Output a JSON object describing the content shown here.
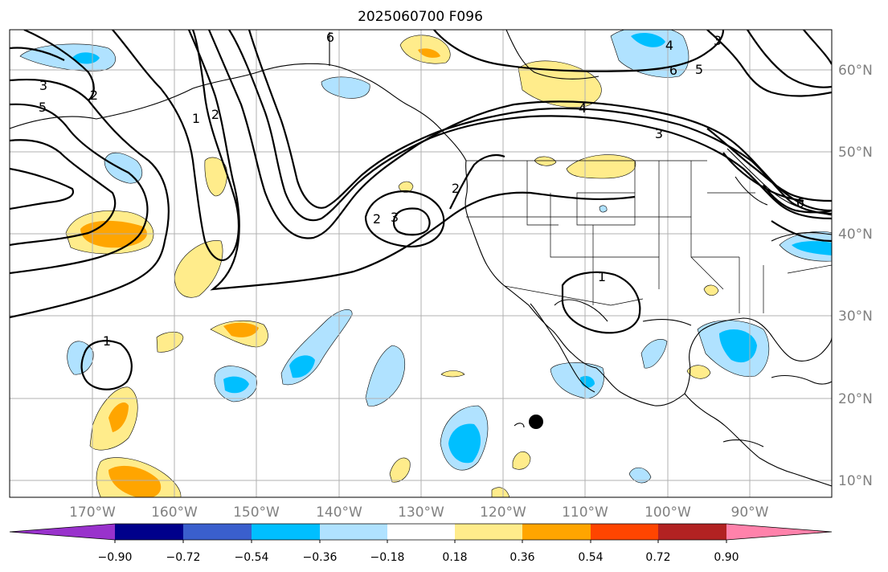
{
  "title": "2025060700 F096",
  "map": {
    "lon_labels": [
      "170°W",
      "160°W",
      "150°W",
      "140°W",
      "130°W",
      "120°W",
      "110°W",
      "100°W",
      "90°W"
    ],
    "lat_labels": [
      "60°N",
      "50°N",
      "40°N",
      "30°N",
      "20°N",
      "10°N"
    ],
    "extent": {
      "lon": [
        -180,
        -80
      ],
      "lat": [
        8,
        65
      ]
    }
  },
  "colorbar": {
    "ticks": [
      "−0.90",
      "−0.72",
      "−0.54",
      "−0.36",
      "−0.18",
      "0.18",
      "0.36",
      "0.54",
      "0.72",
      "0.90"
    ],
    "colors": [
      "#9932cc",
      "#00008b",
      "#3a5fcd",
      "#00bfff",
      "#b0e2ff",
      "#ffffff",
      "#ffec8b",
      "#ffa500",
      "#ff4500",
      "#b22222",
      "#ff82ab"
    ]
  },
  "contour_labels": [
    "6",
    "3",
    "5",
    "2",
    "1",
    "2",
    "3",
    "4",
    "5",
    "6",
    "2",
    "3",
    "1",
    "4",
    "6",
    "1",
    "2",
    "3"
  ],
  "colors": {
    "shade_pos1": "#ffec8b",
    "shade_pos2": "#ffa500",
    "shade_neg1": "#b0e2ff",
    "shade_neg2": "#00bfff"
  }
}
